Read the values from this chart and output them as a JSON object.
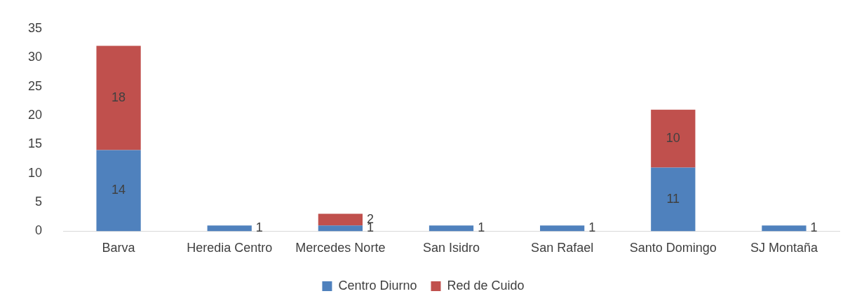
{
  "chart_data": {
    "type": "bar",
    "stacked": true,
    "categories": [
      "Barva",
      "Heredia Centro",
      "Mercedes Norte",
      "San Isidro",
      "San Rafael",
      "Santo Domingo",
      "SJ Montaña"
    ],
    "series": [
      {
        "name": "Centro Diurno",
        "color": "#4f81bd",
        "values": [
          14,
          1,
          1,
          1,
          1,
          11,
          1
        ]
      },
      {
        "name": "Red de Cuido",
        "color": "#c0504d",
        "values": [
          18,
          null,
          2,
          null,
          null,
          10,
          null
        ]
      }
    ],
    "ylim": [
      0,
      35
    ],
    "yticks": [
      0,
      5,
      10,
      15,
      20,
      25,
      30,
      35
    ],
    "grid": false,
    "legend": "bottom",
    "data_labels": true
  }
}
